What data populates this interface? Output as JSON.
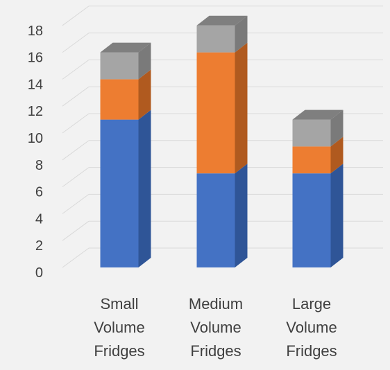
{
  "chart_data": {
    "type": "bar",
    "stacked": true,
    "three_d": true,
    "categories": [
      [
        "Small",
        "Volume",
        "Fridges"
      ],
      [
        "Medium",
        "Volume",
        "Fridges"
      ],
      [
        "Large",
        "Volume",
        "Fridges"
      ]
    ],
    "series": [
      {
        "values": [
          11,
          7,
          7
        ],
        "color": "#4472c4",
        "side_color": "#2f5597",
        "top_color": "#6a8fd4"
      },
      {
        "values": [
          3,
          9,
          2
        ],
        "color": "#ed7d31",
        "side_color": "#b05a1f",
        "top_color": "#f29a5c"
      },
      {
        "values": [
          2,
          2,
          2
        ],
        "color": "#a5a5a5",
        "side_color": "#7a7a7a",
        "top_color": "#7f7f7f"
      }
    ],
    "y_ticks": [
      0,
      2,
      4,
      6,
      8,
      10,
      12,
      14,
      16,
      18
    ],
    "ylim": [
      0,
      20
    ],
    "grid": true,
    "legend": "none",
    "background": "#f2f2f2",
    "gridline_color": "#d9d9d9"
  }
}
